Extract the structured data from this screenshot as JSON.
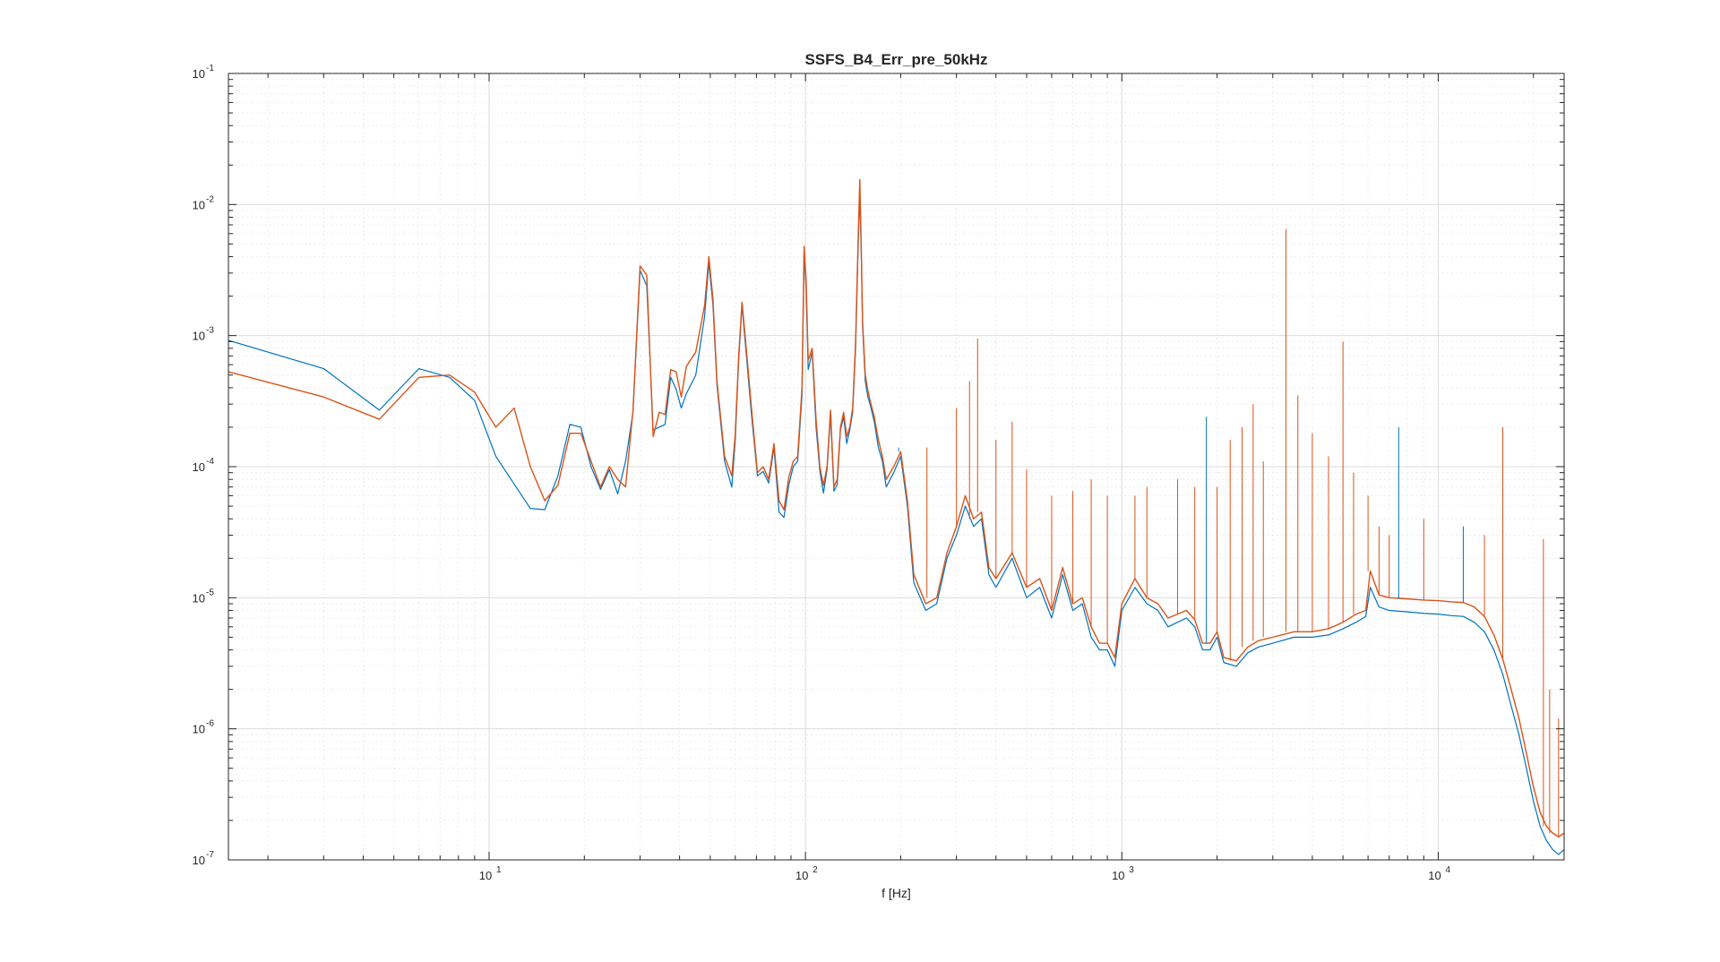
{
  "chart_data": {
    "type": "line",
    "title": "SSFS_B4_Err_pre_50kHz",
    "xlabel": "f [Hz]",
    "ylabel": "",
    "xscale": "log",
    "yscale": "log",
    "xlim": [
      1.5,
      25000
    ],
    "ylim": [
      1e-07,
      0.1
    ],
    "grid": true,
    "minor_grid": true,
    "legend": "none",
    "x_ticks": [
      {
        "base": "10",
        "exp": "1",
        "value": 10
      },
      {
        "base": "10",
        "exp": "2",
        "value": 100
      },
      {
        "base": "10",
        "exp": "3",
        "value": 1000
      },
      {
        "base": "10",
        "exp": "4",
        "value": 10000
      }
    ],
    "y_ticks": [
      {
        "base": "10",
        "exp": "-1",
        "value": 0.1
      },
      {
        "base": "10",
        "exp": "-2",
        "value": 0.01
      },
      {
        "base": "10",
        "exp": "-3",
        "value": 0.001
      },
      {
        "base": "10",
        "exp": "-4",
        "value": 0.0001
      },
      {
        "base": "10",
        "exp": "-5",
        "value": 1e-05
      },
      {
        "base": "10",
        "exp": "-6",
        "value": 1e-06
      },
      {
        "base": "10",
        "exp": "-7",
        "value": 1e-07
      }
    ],
    "series": [
      {
        "color": "#0072BD",
        "x": [
          1.5,
          3,
          4.5,
          6,
          7.5,
          9,
          10.5,
          13.5,
          15,
          16.5,
          18,
          19.5,
          21,
          22.5,
          24,
          25.5,
          27,
          28.5,
          30,
          31.5,
          33,
          34.5,
          36,
          37.5,
          39,
          40.5,
          42,
          45,
          48,
          49.5,
          51,
          52.5,
          55.5,
          58.5,
          60,
          61.5,
          63,
          64.5,
          67.5,
          70.5,
          73.5,
          76.5,
          79.5,
          82.5,
          85.5,
          88.5,
          91.5,
          94.5,
          97.5,
          99,
          100.5,
          102,
          105,
          108,
          111,
          114,
          117,
          120,
          123,
          126,
          129,
          132,
          135,
          138,
          141,
          144,
          147,
          148.5,
          150,
          151.5,
          154.5,
          157.5,
          160,
          165,
          170,
          175,
          180,
          190,
          200,
          210,
          220,
          240,
          260,
          280,
          300,
          320,
          340,
          360,
          380,
          400,
          450,
          500,
          550,
          600,
          650,
          700,
          750,
          800,
          850,
          900,
          950,
          1000,
          1100,
          1200,
          1300,
          1400,
          1500,
          1600,
          1700,
          1800,
          1900,
          2000,
          2100,
          2300,
          2500,
          2700,
          3000,
          3500,
          4000,
          4500,
          5000,
          5500,
          5900,
          6100,
          6500,
          7000,
          8000,
          9000,
          10000,
          11000,
          12000,
          13000,
          14000,
          15000,
          16000,
          17000,
          18000,
          19000,
          20000,
          21000,
          22000,
          23000,
          24000,
          25000
        ],
        "y": [
          0.00092,
          0.00056,
          0.00027,
          0.00056,
          0.00048,
          0.00032,
          0.00012,
          4.8e-05,
          4.7e-05,
          8.5e-05,
          0.00021,
          0.0002,
          0.0001,
          6.7e-05,
          9.5e-05,
          6.2e-05,
          0.00011,
          0.00026,
          0.00315,
          0.0024,
          0.00019,
          0.0002,
          0.00021,
          0.00048,
          0.00039,
          0.00028,
          0.00036,
          0.0005,
          0.0014,
          0.0036,
          0.0017,
          0.00042,
          0.00011,
          7e-05,
          0.00016,
          0.00065,
          0.0017,
          0.00089,
          0.00025,
          8.5e-05,
          9.2e-05,
          7.5e-05,
          0.00014,
          4.5e-05,
          4.1e-05,
          7.2e-05,
          0.0001,
          0.00011,
          0.00035,
          0.0042,
          0.0023,
          0.00055,
          0.00075,
          0.0002,
          9.3e-05,
          6.3e-05,
          9.5e-05,
          0.00025,
          6.5e-05,
          7.3e-05,
          0.00019,
          0.00024,
          0.00015,
          0.00019,
          0.00026,
          0.0008,
          0.0055,
          0.012,
          0.0045,
          0.0012,
          0.00045,
          0.00034,
          0.0003,
          0.00022,
          0.00014,
          0.00011,
          7e-05,
          9e-05,
          0.00012,
          5e-05,
          1.3e-05,
          8e-06,
          9e-06,
          2e-05,
          3e-05,
          5e-05,
          3.5e-05,
          4e-05,
          1.5e-05,
          1.2e-05,
          2e-05,
          1e-05,
          1.2e-05,
          7e-06,
          1.5e-05,
          8e-06,
          9e-06,
          5e-06,
          4e-06,
          4e-06,
          3e-06,
          8e-06,
          1.2e-05,
          9e-06,
          8e-06,
          6e-06,
          6.5e-06,
          7e-06,
          6e-06,
          4e-06,
          4e-06,
          5e-06,
          3.2e-06,
          3e-06,
          3.8e-06,
          4.2e-06,
          4.5e-06,
          5e-06,
          5e-06,
          5.2e-06,
          5.8e-06,
          6.5e-06,
          7.2e-06,
          1.2e-05,
          8.5e-06,
          8e-06,
          7.8e-06,
          7.6e-06,
          7.5e-06,
          7.3e-06,
          7.2e-06,
          6.5e-06,
          5.5e-06,
          4e-06,
          2.6e-06,
          1.5e-06,
          9e-07,
          5e-07,
          2.8e-07,
          1.8e-07,
          1.4e-07,
          1.2e-07,
          1.1e-07,
          1.2e-07
        ]
      },
      {
        "color": "#D95319",
        "x": [
          1.5,
          3,
          4.5,
          6,
          7.5,
          9,
          10.5,
          12,
          13.5,
          15,
          16.5,
          18,
          19.5,
          21,
          22.5,
          24,
          25.5,
          27,
          28.5,
          30,
          31.5,
          33,
          34.5,
          36,
          37.5,
          39,
          40.5,
          42,
          45,
          48,
          49.5,
          51,
          52.5,
          55.5,
          58.5,
          60,
          61.5,
          63,
          64.5,
          67.5,
          70.5,
          73.5,
          76.5,
          79.5,
          82.5,
          85.5,
          88.5,
          91.5,
          94.5,
          97.5,
          99,
          100.5,
          102,
          105,
          108,
          111,
          114,
          117,
          120,
          123,
          126,
          129,
          132,
          135,
          138,
          141,
          144,
          147,
          148.5,
          150,
          151.5,
          154.5,
          157.5,
          160,
          165,
          170,
          175,
          180,
          190,
          200,
          210,
          220,
          240,
          260,
          280,
          300,
          320,
          340,
          360,
          380,
          400,
          450,
          500,
          550,
          600,
          650,
          700,
          750,
          800,
          850,
          900,
          950,
          1000,
          1100,
          1200,
          1300,
          1400,
          1500,
          1600,
          1700,
          1800,
          1900,
          2000,
          2100,
          2300,
          2500,
          2700,
          3000,
          3500,
          4000,
          4500,
          5000,
          5500,
          5900,
          6100,
          6500,
          7000,
          8000,
          9000,
          10000,
          11000,
          12000,
          13000,
          14000,
          15000,
          16000,
          17000,
          18000,
          19000,
          20000,
          21000,
          22000,
          23000,
          24000,
          25000
        ],
        "y": [
          0.00053,
          0.00034,
          0.00023,
          0.00048,
          0.0005,
          0.00037,
          0.0002,
          0.00028,
          0.0001,
          5.5e-05,
          7.2e-05,
          0.00018,
          0.00018,
          0.00011,
          7e-05,
          0.0001,
          8e-05,
          7e-05,
          0.00027,
          0.0034,
          0.0029,
          0.00017,
          0.00026,
          0.00025,
          0.00055,
          0.00053,
          0.00034,
          0.00058,
          0.00075,
          0.0017,
          0.004,
          0.0019,
          0.00045,
          0.00012,
          8.5e-05,
          0.00018,
          0.0007,
          0.0018,
          0.00098,
          0.00028,
          9e-05,
          0.0001,
          8e-05,
          0.00015,
          5.5e-05,
          4.7e-05,
          8.2e-05,
          0.00011,
          0.00012,
          0.0004,
          0.0048,
          0.0026,
          0.00065,
          0.0008,
          0.00023,
          0.0001,
          7.2e-05,
          0.0001,
          0.00027,
          7e-05,
          8e-05,
          0.0002,
          0.00026,
          0.00017,
          0.0002,
          0.00028,
          0.0009,
          0.0065,
          0.0155,
          0.005,
          0.0013,
          0.0005,
          0.00038,
          0.00032,
          0.00024,
          0.00016,
          0.00012,
          8e-05,
          0.0001,
          0.00013,
          5.5e-05,
          1.5e-05,
          9e-06,
          1e-05,
          2.2e-05,
          3.5e-05,
          6e-05,
          4e-05,
          4.5e-05,
          1.7e-05,
          1.4e-05,
          2.2e-05,
          1.2e-05,
          1.4e-05,
          8e-06,
          1.7e-05,
          9e-06,
          1e-05,
          6e-06,
          4.5e-06,
          4.5e-06,
          3.5e-06,
          9e-06,
          1.4e-05,
          1e-05,
          9e-06,
          7e-06,
          7.5e-06,
          8e-06,
          6.8e-06,
          4.5e-06,
          4.5e-06,
          5.5e-06,
          3.5e-06,
          3.3e-06,
          4.2e-06,
          4.7e-06,
          5e-06,
          5.5e-06,
          5.5e-06,
          5.8e-06,
          6.5e-06,
          7.5e-06,
          8e-06,
          1.6e-05,
          1.05e-05,
          1e-05,
          9.8e-06,
          9.6e-06,
          9.5e-06,
          9.3e-06,
          9.2e-06,
          8.5e-06,
          7.2e-06,
          5.2e-06,
          3.4e-06,
          2e-06,
          1.2e-06,
          6.5e-07,
          3.6e-07,
          2.3e-07,
          1.8e-07,
          1.6e-07,
          1.5e-07,
          1.6e-07
        ]
      }
    ],
    "spikes": [
      {
        "x": 197,
        "y": 0.00014,
        "color": "#0072BD"
      },
      {
        "x": 242,
        "y": 0.00014,
        "color": "#D95319"
      },
      {
        "x": 300,
        "y": 0.00028,
        "color": "#D95319"
      },
      {
        "x": 330,
        "y": 0.00045,
        "color": "#D95319"
      },
      {
        "x": 350,
        "y": 0.00095,
        "color": "#D95319"
      },
      {
        "x": 400,
        "y": 0.00016,
        "color": "#D95319"
      },
      {
        "x": 450,
        "y": 0.00022,
        "color": "#D95319"
      },
      {
        "x": 500,
        "y": 9.5e-05,
        "color": "#D95319"
      },
      {
        "x": 600,
        "y": 6e-05,
        "color": "#D95319"
      },
      {
        "x": 700,
        "y": 6.5e-05,
        "color": "#D95319"
      },
      {
        "x": 800,
        "y": 8e-05,
        "color": "#D95319"
      },
      {
        "x": 900,
        "y": 6e-05,
        "color": "#D95319"
      },
      {
        "x": 1100,
        "y": 6e-05,
        "color": "#D95319"
      },
      {
        "x": 1200,
        "y": 7e-05,
        "color": "#D95319"
      },
      {
        "x": 1500,
        "y": 8e-05,
        "color": "#D95319"
      },
      {
        "x": 1700,
        "y": 7e-05,
        "color": "#D95319"
      },
      {
        "x": 1850,
        "y": 0.00024,
        "color": "#0072BD"
      },
      {
        "x": 2000,
        "y": 7e-05,
        "color": "#D95319"
      },
      {
        "x": 2200,
        "y": 0.00016,
        "color": "#D95319"
      },
      {
        "x": 2400,
        "y": 0.0002,
        "color": "#D95319"
      },
      {
        "x": 2600,
        "y": 0.0003,
        "color": "#D95319"
      },
      {
        "x": 2800,
        "y": 0.00011,
        "color": "#D95319"
      },
      {
        "x": 3300,
        "y": 0.0065,
        "color": "#D95319"
      },
      {
        "x": 3600,
        "y": 0.00035,
        "color": "#D95319"
      },
      {
        "x": 4000,
        "y": 0.00018,
        "color": "#D95319"
      },
      {
        "x": 4500,
        "y": 0.00012,
        "color": "#D95319"
      },
      {
        "x": 5000,
        "y": 0.0009,
        "color": "#D95319"
      },
      {
        "x": 5400,
        "y": 9e-05,
        "color": "#D95319"
      },
      {
        "x": 6000,
        "y": 6e-05,
        "color": "#D95319"
      },
      {
        "x": 6500,
        "y": 3.5e-05,
        "color": "#D95319"
      },
      {
        "x": 7000,
        "y": 3e-05,
        "color": "#D95319"
      },
      {
        "x": 7500,
        "y": 0.0002,
        "color": "#0072BD"
      },
      {
        "x": 9000,
        "y": 4e-05,
        "color": "#D95319"
      },
      {
        "x": 12000,
        "y": 3.5e-05,
        "color": "#0072BD"
      },
      {
        "x": 14000,
        "y": 3e-05,
        "color": "#D95319"
      },
      {
        "x": 16000,
        "y": 0.0002,
        "color": "#D95319"
      },
      {
        "x": 21500,
        "y": 2.8e-05,
        "color": "#D95319"
      },
      {
        "x": 22500,
        "y": 2e-06,
        "color": "#D95319"
      },
      {
        "x": 24000,
        "y": 1.2e-06,
        "color": "#D95319"
      }
    ]
  }
}
